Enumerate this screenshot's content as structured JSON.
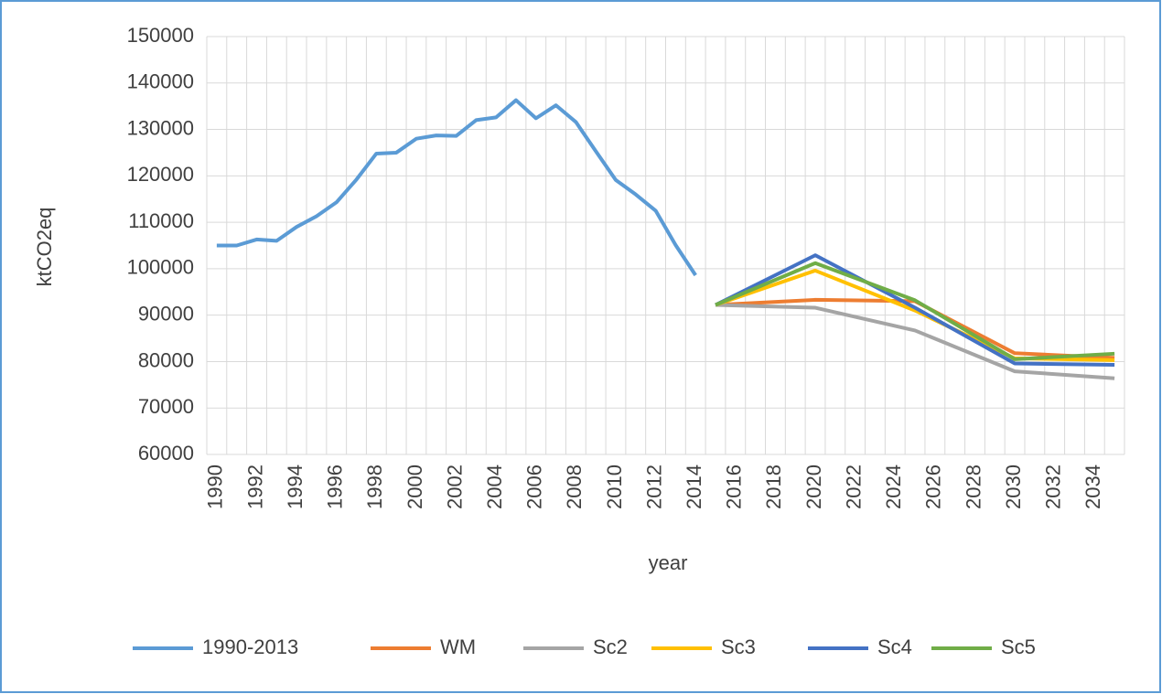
{
  "chart_data": {
    "type": "line",
    "x_label": "year",
    "y_label": "ktCO2eq",
    "xlim": [
      1989.5,
      2035.5
    ],
    "xticks": [
      1990,
      1992,
      1994,
      1996,
      1998,
      2000,
      2002,
      2004,
      2006,
      2008,
      2010,
      2012,
      2014,
      2016,
      2018,
      2020,
      2022,
      2024,
      2026,
      2028,
      2030,
      2032,
      2034
    ],
    "ylim": [
      60000,
      150000
    ],
    "yticks": [
      60000,
      70000,
      80000,
      90000,
      100000,
      110000,
      120000,
      130000,
      140000,
      150000
    ],
    "grid": true,
    "legend": "bottom",
    "series": [
      {
        "name": "1990-2013",
        "color": "#5b9bd5",
        "x": [
          1990,
          1991,
          1992,
          1993,
          1994,
          1995,
          1996,
          1997,
          1998,
          1999,
          2000,
          2001,
          2002,
          2003,
          2004,
          2005,
          2006,
          2007,
          2008,
          2009,
          2010,
          2011,
          2012,
          2013,
          2014
        ],
        "values": [
          105000,
          105000,
          106300,
          106000,
          109000,
          111300,
          114300,
          119200,
          124800,
          125000,
          128000,
          128700,
          128600,
          132000,
          132600,
          136300,
          132400,
          135200,
          131600,
          125300,
          119100,
          116000,
          112500,
          105100,
          98600
        ]
      },
      {
        "name": "WM",
        "color": "#ed7d31",
        "x": [
          2015,
          2020,
          2025,
          2030,
          2035
        ],
        "values": [
          92200,
          93300,
          93000,
          81800,
          80800
        ]
      },
      {
        "name": "Sc2",
        "color": "#a5a5a5",
        "x": [
          2015,
          2020,
          2025,
          2030,
          2035
        ],
        "values": [
          92200,
          91600,
          86700,
          77900,
          76400
        ]
      },
      {
        "name": "Sc3",
        "color": "#ffc000",
        "x": [
          2015,
          2020,
          2025,
          2030,
          2035
        ],
        "values": [
          92200,
          99600,
          91000,
          80700,
          80300
        ]
      },
      {
        "name": "Sc4",
        "color": "#4472c4",
        "x": [
          2015,
          2020,
          2025,
          2030,
          2035
        ],
        "values": [
          92200,
          102900,
          91600,
          79600,
          79300
        ]
      },
      {
        "name": "Sc5",
        "color": "#70ad47",
        "x": [
          2015,
          2020,
          2025,
          2030,
          2035
        ],
        "values": [
          92200,
          101200,
          93200,
          80500,
          81700
        ]
      }
    ]
  }
}
